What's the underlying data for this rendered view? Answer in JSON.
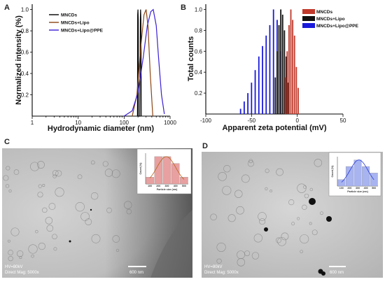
{
  "panels": {
    "A": "A",
    "B": "B",
    "C": "C",
    "D": "D"
  },
  "chart_data": [
    {
      "type": "line",
      "panel": "A",
      "xlabel": "Hydrodynamic diameter (nm)",
      "ylabel": "Normalized intensity (%)",
      "xscale": "log",
      "xlim": [
        1,
        1000
      ],
      "ylim": [
        0,
        1.05
      ],
      "xticks": [
        1,
        10,
        100,
        1000
      ],
      "xtick_labels": [
        "1",
        "10",
        "100",
        "1000"
      ],
      "yticks": [
        0.2,
        0.4,
        0.6,
        0.8,
        1.0
      ],
      "ytick_labels": [
        "0.2",
        "0.4",
        "0.6",
        "0.8",
        "1.0"
      ],
      "legend_position": "top-left",
      "series": [
        {
          "name": "MNCDs",
          "color": "#000000",
          "x": [
            195,
            197,
            200,
            203,
            205,
            220,
            225,
            228,
            232,
            236
          ],
          "y": [
            0.0,
            0.95,
            1.0,
            0.9,
            0.0,
            0.0,
            0.92,
            1.0,
            0.9,
            0.0
          ]
        },
        {
          "name": "MNCDs+Lipo",
          "color": "#8b4513",
          "x": [
            150,
            190,
            230,
            270,
            300,
            330,
            370,
            420
          ],
          "y": [
            0.0,
            0.2,
            0.65,
            0.95,
            1.0,
            0.85,
            0.4,
            0.0
          ]
        },
        {
          "name": "MNCDs+Lipo@PPE",
          "color": "#3a1fd6",
          "x": [
            100,
            150,
            200,
            260,
            320,
            380,
            430,
            500,
            560,
            650,
            750
          ],
          "y": [
            0.0,
            0.05,
            0.22,
            0.55,
            0.85,
            0.98,
            1.0,
            0.85,
            0.55,
            0.2,
            0.02
          ]
        }
      ]
    },
    {
      "type": "bar",
      "panel": "B",
      "xlabel": "Apparent zeta potential (mV)",
      "ylabel": "Total counts",
      "xlim": [
        -100,
        50
      ],
      "ylim": [
        0,
        1.05
      ],
      "xticks": [
        -100,
        -50,
        0,
        50
      ],
      "xtick_labels": [
        "-100",
        "-50",
        "0",
        "50"
      ],
      "yticks": [
        0.2,
        0.4,
        0.6,
        0.8,
        1.0
      ],
      "ytick_labels": [
        "0.2",
        "0.4",
        "0.6",
        "0.8",
        "1.0"
      ],
      "legend_position": "top-right",
      "series": [
        {
          "name": "MNCDs",
          "color": "#c0392b",
          "x": [
            -13,
            -11,
            -9,
            -7,
            -5,
            -3,
            -1,
            1
          ],
          "y": [
            0.35,
            0.6,
            0.85,
            1.0,
            0.9,
            0.75,
            0.45,
            0.25
          ]
        },
        {
          "name": "MNCDs+Lipo",
          "color": "#111111",
          "x": [
            -24,
            -22,
            -20,
            -18,
            -16,
            -14,
            -12,
            -10
          ],
          "y": [
            0.35,
            0.6,
            0.85,
            1.0,
            0.95,
            0.8,
            0.55,
            0.3
          ]
        },
        {
          "name": "MNCDs+Lipo@PPE",
          "color": "#1a1adc",
          "x": [
            -62,
            -58,
            -54,
            -50,
            -46,
            -42,
            -38,
            -34,
            -30,
            -26,
            -22,
            -18,
            -14
          ],
          "y": [
            0.05,
            0.12,
            0.2,
            0.3,
            0.42,
            0.55,
            0.65,
            0.75,
            0.85,
            1.0,
            0.9,
            0.6,
            0.3
          ]
        }
      ]
    },
    {
      "type": "bar",
      "panel": "C-inset",
      "xlabel": "Particle size (nm)",
      "ylabel": "Count (%)",
      "categories": [
        "100",
        "200",
        "300",
        "400",
        "500"
      ],
      "values": [
        1,
        4,
        4,
        3,
        1
      ],
      "ylim": [
        0,
        4.5
      ],
      "bar_color": "#e8a0a0",
      "fit_color": "#b5651d"
    },
    {
      "type": "bar",
      "panel": "D-inset",
      "xlabel": "Particle size (nm)",
      "ylabel": "Count (%)",
      "categories": [
        "100",
        "200",
        "300",
        "400",
        "500"
      ],
      "values": [
        1,
        3,
        4,
        3,
        2
      ],
      "ylim": [
        0,
        4.5
      ],
      "bar_color": "#a8b4f0",
      "fit_color": "#2a3bd8"
    }
  ],
  "tem": {
    "C": {
      "hv": "HV=80kV",
      "mag": "Direct Mag: 5000x",
      "scale": "600 nm"
    },
    "D": {
      "hv": "HV=80kV",
      "mag": "Direct Mag: 5000x",
      "scale": "600 nm"
    }
  }
}
